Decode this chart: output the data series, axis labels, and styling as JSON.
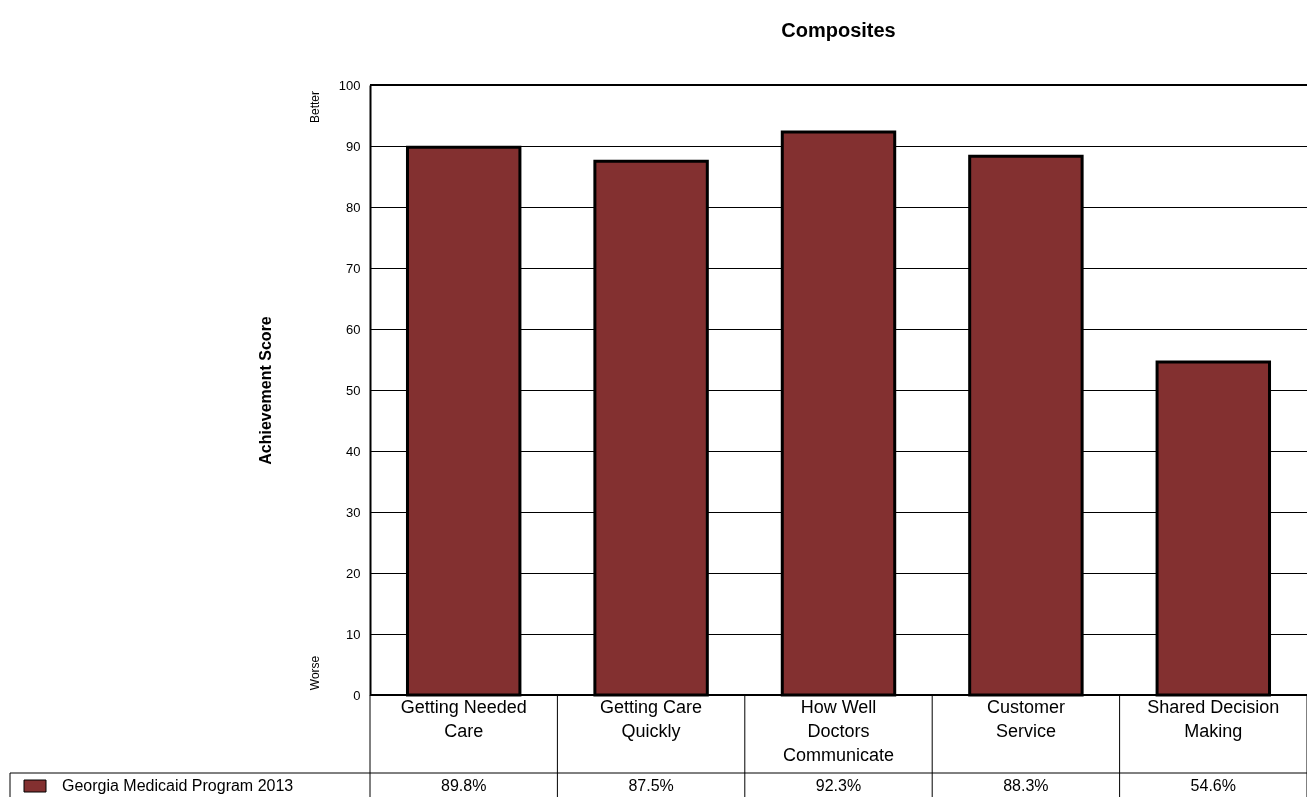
{
  "chart_data": {
    "type": "bar",
    "title": "Composites",
    "ylabel": "Achievement Score",
    "categories": [
      "Getting Needed Care",
      "Getting Care Quickly",
      "How Well Doctors Communicate",
      "Customer Service",
      "Shared Decision Making"
    ],
    "series": [
      {
        "name": "Georgia Medicaid Program 2013",
        "color": "#833030",
        "values": [
          89.8,
          87.5,
          92.3,
          88.3,
          54.6
        ],
        "value_labels": [
          "89.8%",
          "87.5%",
          "92.3%",
          "88.3%",
          "54.6%"
        ]
      }
    ],
    "ylim": [
      0,
      100
    ],
    "yticks": [
      0,
      10,
      20,
      30,
      40,
      50,
      60,
      70,
      80,
      90,
      100
    ],
    "annotations": [
      "Better",
      "Worse"
    ],
    "grid": "y",
    "legend": "bottom left"
  }
}
